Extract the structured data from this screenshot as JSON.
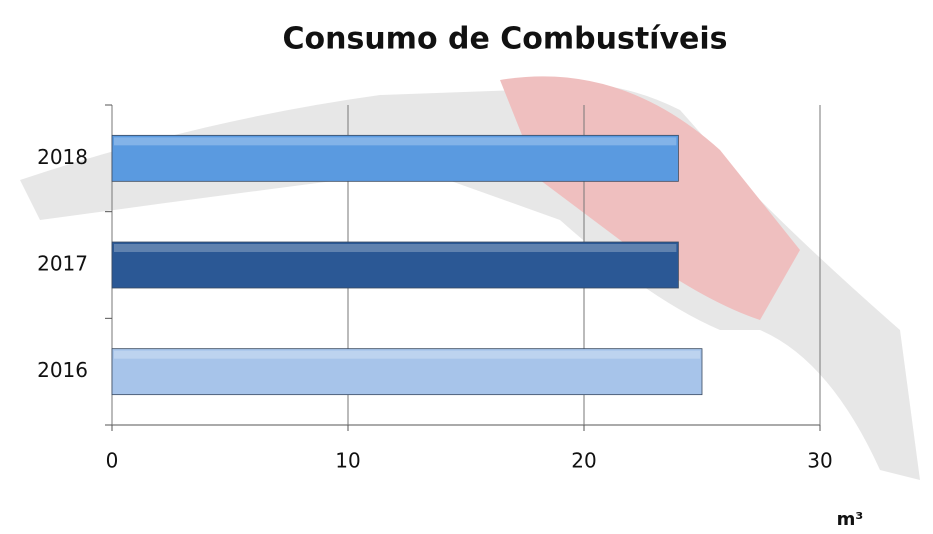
{
  "chart_data": {
    "type": "bar",
    "orientation": "horizontal",
    "title": "Consumo de Combustíveis",
    "categories": [
      "2016",
      "2017",
      "2018"
    ],
    "values": [
      25,
      24,
      24
    ],
    "colors": [
      "#a7c4ea",
      "#2b5895",
      "#5a9ae0"
    ],
    "xlim": [
      0,
      30
    ],
    "xticks": [
      0,
      10,
      20,
      30
    ],
    "grid": true,
    "x_label": "m³"
  }
}
